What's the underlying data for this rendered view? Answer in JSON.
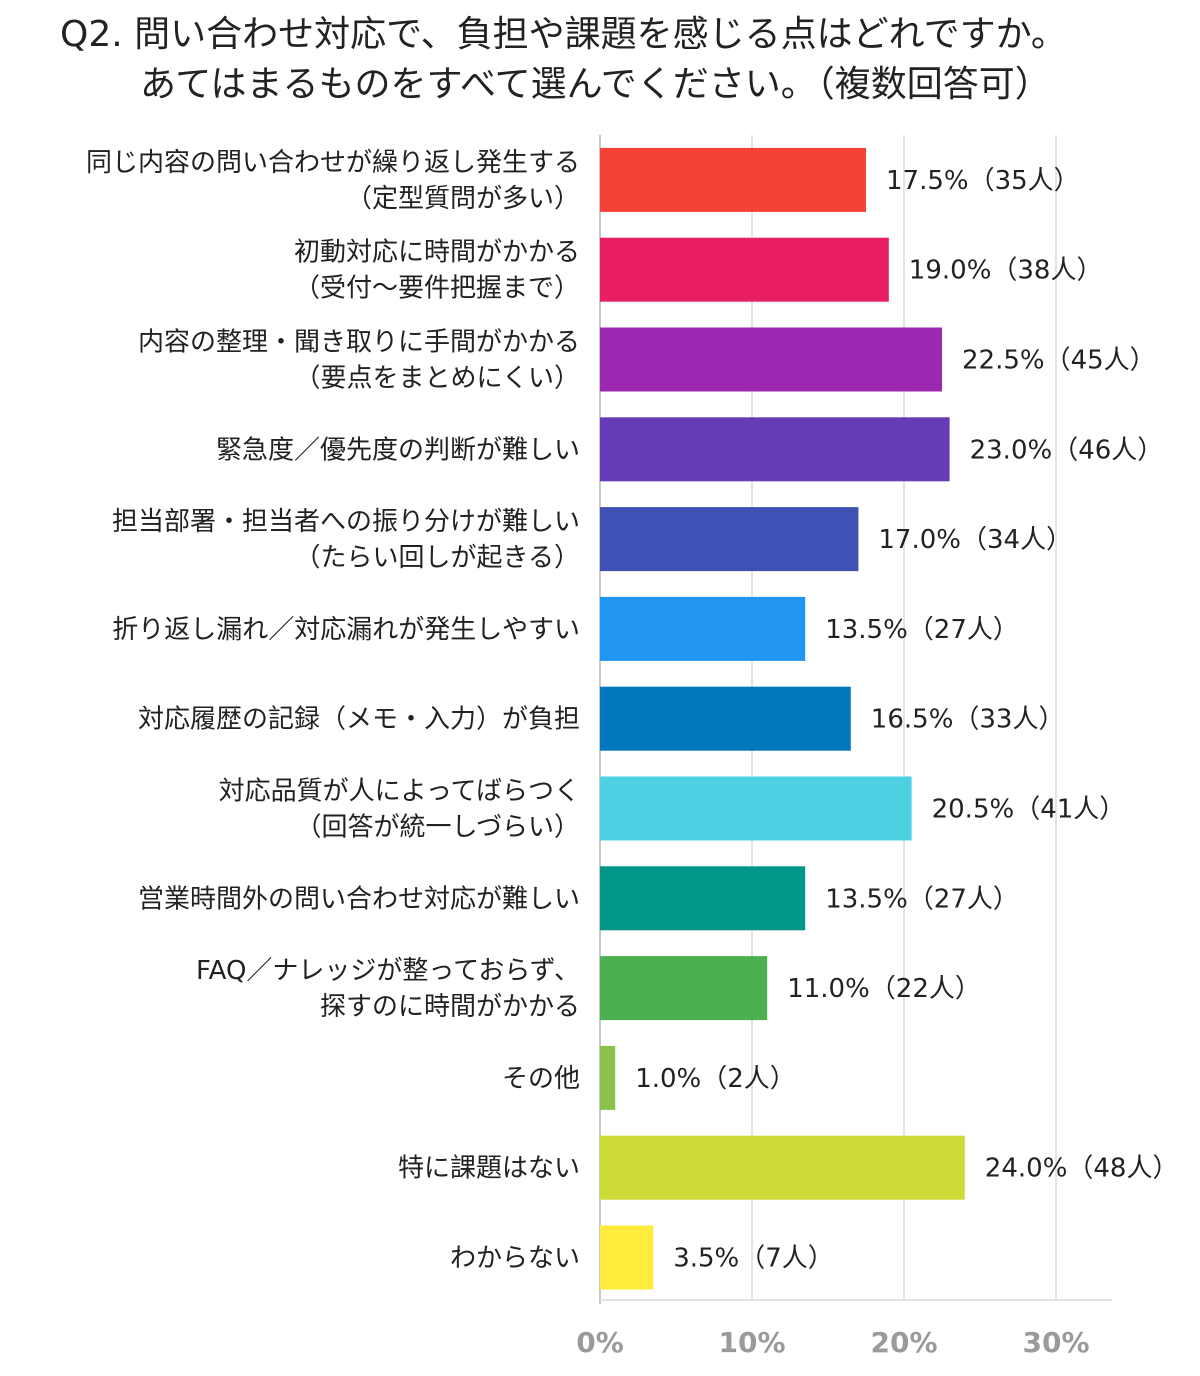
{
  "chart_data": {
    "type": "bar",
    "orientation": "horizontal",
    "title_lines": [
      "Q2. 問い合わせ対応で、負担や課題を感じる点はどれですか。",
      "あてはまるものをすべて選んでください。（複数回答可）"
    ],
    "categories": [
      [
        "同じ内容の問い合わせが繰り返し発生する",
        "（定型質問が多い）"
      ],
      [
        "初動対応に時間がかかる",
        "（受付～要件把握まで）"
      ],
      [
        "内容の整理・聞き取りに手間がかかる",
        "（要点をまとめにくい）"
      ],
      [
        "緊急度／優先度の判断が難しい"
      ],
      [
        "担当部署・担当者への振り分けが難しい",
        "（たらい回しが起きる）"
      ],
      [
        "折り返し漏れ／対応漏れが発生しやすい"
      ],
      [
        "対応履歴の記録（メモ・入力）が負担"
      ],
      [
        "対応品質が人によってばらつく",
        "（回答が統一しづらい）"
      ],
      [
        "営業時間外の問い合わせ対応が難しい"
      ],
      [
        "FAQ／ナレッジが整っておらず、",
        "探すのに時間がかかる"
      ],
      [
        "その他"
      ],
      [
        "特に課題はない"
      ],
      [
        "わからない"
      ]
    ],
    "values": [
      17.5,
      19.0,
      22.5,
      23.0,
      17.0,
      13.5,
      16.5,
      20.5,
      13.5,
      11.0,
      1.0,
      24.0,
      3.5
    ],
    "value_labels": [
      "17.5%（35人）",
      "19.0%（38人）",
      "22.5%（45人）",
      "23.0%（46人）",
      "17.0%（34人）",
      "13.5%（27人）",
      "16.5%（33人）",
      "20.5%（41人）",
      "13.5%（27人）",
      "11.0%（22人）",
      "1.0%（2人）",
      "24.0%（48人）",
      "3.5%（7人）"
    ],
    "colors": [
      "#f44336",
      "#e91e63",
      "#9c27b0",
      "#673ab7",
      "#3f51b5",
      "#2196f3",
      "#0277bd",
      "#4dd0e1",
      "#009688",
      "#4caf50",
      "#8bc34a",
      "#cddc39",
      "#ffeb3b"
    ],
    "xlim": [
      0,
      30
    ],
    "xticks": [
      "0%",
      "10%",
      "20%",
      "30%"
    ],
    "grid": true
  }
}
